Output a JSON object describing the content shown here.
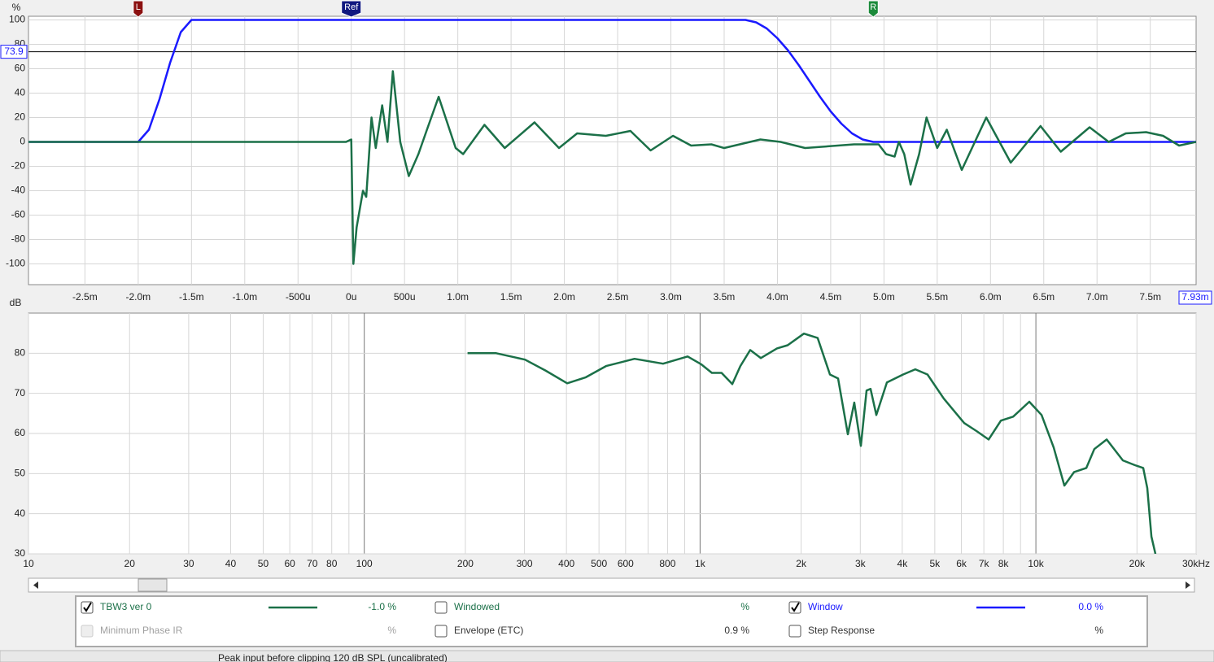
{
  "chart_data": [
    {
      "type": "line",
      "y_label": "%",
      "xlim": [
        -3.03,
        7.93
      ],
      "ylim": [
        -117,
        103
      ],
      "xticks": [
        {
          "value": -2.5,
          "label": "-2.5m"
        },
        {
          "value": -2.0,
          "label": "-2.0m"
        },
        {
          "value": -1.5,
          "label": "-1.5m"
        },
        {
          "value": -1.0,
          "label": "-1.0m"
        },
        {
          "value": -0.5,
          "label": "-500u"
        },
        {
          "value": 0,
          "label": "0u"
        },
        {
          "value": 0.5,
          "label": "500u"
        },
        {
          "value": 1.0,
          "label": "1.0m"
        },
        {
          "value": 1.5,
          "label": "1.5m"
        },
        {
          "value": 2.0,
          "label": "2.0m"
        },
        {
          "value": 2.5,
          "label": "2.5m"
        },
        {
          "value": 3.0,
          "label": "3.0m"
        },
        {
          "value": 3.5,
          "label": "3.5m"
        },
        {
          "value": 4.0,
          "label": "4.0m"
        },
        {
          "value": 4.5,
          "label": "4.5m"
        },
        {
          "value": 5.0,
          "label": "5.0m"
        },
        {
          "value": 5.5,
          "label": "5.5m"
        },
        {
          "value": 6.0,
          "label": "6.0m"
        },
        {
          "value": 6.5,
          "label": "6.5m"
        },
        {
          "value": 7.0,
          "label": "7.0m"
        },
        {
          "value": 7.5,
          "label": "7.5m"
        }
      ],
      "yticks": [
        -100,
        -80,
        -60,
        -40,
        -20,
        0,
        20,
        40,
        60,
        80,
        100
      ],
      "grid": true,
      "cursor": {
        "y": 73.9,
        "x": {
          "value": 7.93,
          "label": "7.93m"
        }
      },
      "series": [
        {
          "color": "#1b7048",
          "x": [
            -3.03,
            -0.05,
            0,
            0.02,
            0.05,
            0.11,
            0.14,
            0.19,
            0.23,
            0.29,
            0.34,
            0.39,
            0.46,
            0.54,
            0.63,
            0.71,
            0.82,
            0.98,
            1.05,
            1.25,
            1.44,
            1.72,
            1.95,
            2.12,
            2.39,
            2.62,
            2.81,
            3.02,
            3.19,
            3.38,
            3.5,
            3.84,
            4.03,
            4.26,
            4.72,
            4.95,
            5.02,
            5.1,
            5.14,
            5.19,
            5.25,
            5.33,
            5.4,
            5.5,
            5.59,
            5.73,
            5.96,
            6.19,
            6.47,
            6.66,
            6.93,
            7.11,
            7.27,
            7.46,
            7.62,
            7.77,
            7.93
          ],
          "values": [
            0,
            0,
            2,
            -100,
            -70,
            -40,
            -45,
            20,
            -5,
            30,
            0,
            58,
            0,
            -28,
            -10,
            10,
            37,
            -5,
            -10,
            14,
            -5,
            16,
            -5,
            7,
            5,
            9,
            -7,
            5,
            -3,
            -2,
            -5,
            2,
            0,
            -5,
            -2,
            -2,
            -10,
            -12,
            0,
            -10,
            -35,
            -10,
            20,
            -5,
            10,
            -23,
            20,
            -17,
            13,
            -8,
            12,
            0,
            7,
            8,
            5,
            -3,
            0
          ]
        },
        {
          "color": "#1a1aff",
          "x": [
            -3.03,
            -2.0,
            -1.9,
            -1.8,
            -1.7,
            -1.6,
            -1.5,
            3.7,
            3.8,
            3.9,
            4.0,
            4.1,
            4.2,
            4.3,
            4.4,
            4.5,
            4.6,
            4.7,
            4.8,
            4.9,
            7.93
          ],
          "values": [
            0,
            0,
            10,
            35,
            65,
            90,
            100,
            100,
            98,
            93,
            85,
            75,
            63,
            50,
            37,
            25,
            15,
            7,
            2,
            0,
            0
          ]
        }
      ]
    },
    {
      "type": "line",
      "y_label": "dB",
      "log_x": true,
      "xlim": [
        10,
        30000
      ],
      "ylim": [
        30,
        90
      ],
      "xticks": [
        10,
        20,
        30,
        40,
        50,
        60,
        70,
        80,
        100,
        200,
        300,
        400,
        500,
        600,
        800,
        {
          "value": 1000,
          "label": "1k"
        },
        {
          "value": 2000,
          "label": "2k"
        },
        {
          "value": 3000,
          "label": "3k"
        },
        {
          "value": 4000,
          "label": "4k"
        },
        {
          "value": 5000,
          "label": "5k"
        },
        {
          "value": 6000,
          "label": "6k"
        },
        {
          "value": 7000,
          "label": "7k"
        },
        {
          "value": 8000,
          "label": "8k"
        },
        {
          "value": 10000,
          "label": "10k"
        },
        {
          "value": 20000,
          "label": "20k"
        },
        {
          "value": 30000,
          "label": "30kHz"
        }
      ],
      "xminor": [
        90,
        700,
        900,
        9000
      ],
      "yticks": [
        30,
        40,
        50,
        60,
        70,
        80
      ],
      "grid": true,
      "series": [
        {
          "color": "#1b7048",
          "x": [
            203,
            247,
            301,
            346,
            402,
            457,
            525,
            638,
            776,
            918,
            1009,
            1084,
            1159,
            1247,
            1318,
            1410,
            1516,
            1694,
            1823,
            2038,
            2239,
            2436,
            2576,
            2754,
            2879,
            3012,
            3131,
            3219,
            3348,
            3600,
            4024,
            4375,
            4757,
            5317,
            6118,
            6656,
            7230,
            7866,
            8557,
            9556,
            10400,
            11300,
            12160,
            13000,
            14130,
            14930,
            16250,
            18160,
            19730,
            20880,
            21470,
            22080,
            22700
          ],
          "values": [
            80,
            80,
            78.4,
            75.7,
            72.5,
            74,
            76.8,
            78.6,
            77.4,
            79.2,
            77.2,
            75.1,
            75.1,
            72.3,
            76.8,
            80.8,
            78.8,
            81.2,
            82,
            84.9,
            83.8,
            74.7,
            73.7,
            59.8,
            67.7,
            56.9,
            70.7,
            71.1,
            64.6,
            72.7,
            74.7,
            76,
            74.7,
            68.7,
            62.6,
            60.6,
            58.5,
            63.2,
            64.2,
            67.9,
            64.6,
            56.5,
            47,
            50.4,
            51.4,
            56.1,
            58.5,
            53.3,
            52.1,
            51.4,
            46.4,
            34.3,
            30
          ]
        }
      ]
    }
  ],
  "markers": [
    {
      "label": "L",
      "x": -2.0,
      "color": "#8b1010"
    },
    {
      "label": "Ref",
      "x": 0,
      "color": "#101880"
    },
    {
      "label": "R",
      "x": 4.9,
      "color": "#1b8a3a"
    }
  ],
  "panel": {
    "items": [
      {
        "label": "TBW3 ver 0",
        "reading": "-1.0 %",
        "checked": true,
        "enabled": true,
        "color": "#1b7048",
        "line": "#1b7048"
      },
      {
        "label": "Windowed",
        "reading": "%",
        "checked": false,
        "enabled": true,
        "color": "#1b7048"
      },
      {
        "label": "Window",
        "reading": "0.0 %",
        "checked": true,
        "enabled": true,
        "color": "#1a1aff",
        "line": "#1a1aff"
      },
      {
        "label": "Minimum Phase IR",
        "reading": "%",
        "checked": false,
        "enabled": false,
        "color": "#a0a0a0"
      },
      {
        "label": "Envelope (ETC)",
        "reading": "0.9 %",
        "checked": false,
        "enabled": true,
        "color": "#333333"
      },
      {
        "label": "Step Response",
        "reading": "%",
        "checked": false,
        "enabled": true,
        "color": "#333333"
      }
    ]
  },
  "status": [
    "Peak input before clipping 120 dB SPL (uncalibrated)"
  ]
}
